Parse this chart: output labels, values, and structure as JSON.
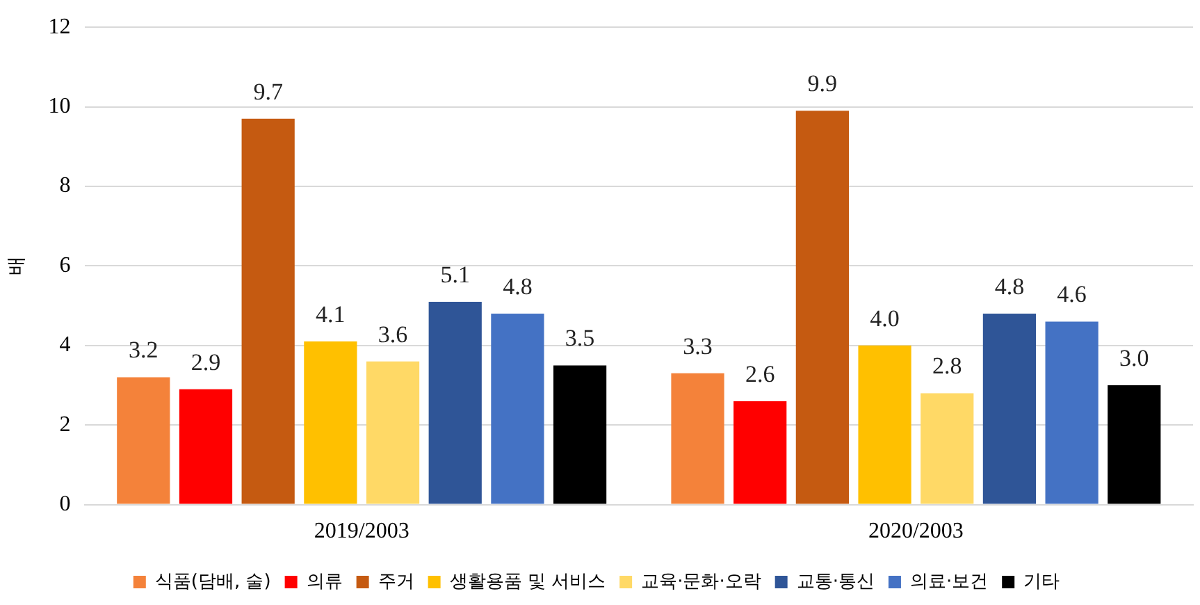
{
  "chart_data": {
    "type": "bar",
    "ylabel": "배",
    "categories": [
      "2019/2003",
      "2020/2003"
    ],
    "series": [
      {
        "name": "식품(담배, 술)",
        "color": "#f4823a",
        "values": [
          3.2,
          3.3
        ],
        "value_labels": [
          "3.2",
          "3.3"
        ]
      },
      {
        "name": "의류",
        "color": "#ff0000",
        "values": [
          2.9,
          2.6
        ],
        "value_labels": [
          "2.9",
          "2.6"
        ]
      },
      {
        "name": "주거",
        "color": "#c55a11",
        "values": [
          9.7,
          9.9
        ],
        "value_labels": [
          "9.7",
          "9.9"
        ]
      },
      {
        "name": "생활용품 및 서비스",
        "color": "#ffc000",
        "values": [
          4.1,
          4.0
        ],
        "value_labels": [
          "4.1",
          "4.0"
        ]
      },
      {
        "name": "교육·문화·오락",
        "color": "#ffd966",
        "values": [
          3.6,
          2.8
        ],
        "value_labels": [
          "3.6",
          "2.8"
        ]
      },
      {
        "name": "교통·통신",
        "color": "#2f5597",
        "values": [
          5.1,
          4.8
        ],
        "value_labels": [
          "5.1",
          "4.8"
        ]
      },
      {
        "name": "의료·보건",
        "color": "#4472c4",
        "values": [
          4.8,
          4.6
        ],
        "value_labels": [
          "4.8",
          "4.6"
        ]
      },
      {
        "name": "기타",
        "color": "#000000",
        "values": [
          3.5,
          3.0
        ],
        "value_labels": [
          "3.5",
          "3.0"
        ]
      }
    ],
    "ylim": [
      0,
      12
    ],
    "yticks": [
      0,
      2,
      4,
      6,
      8,
      10,
      12
    ],
    "grid": "y",
    "legend": "bottom"
  }
}
